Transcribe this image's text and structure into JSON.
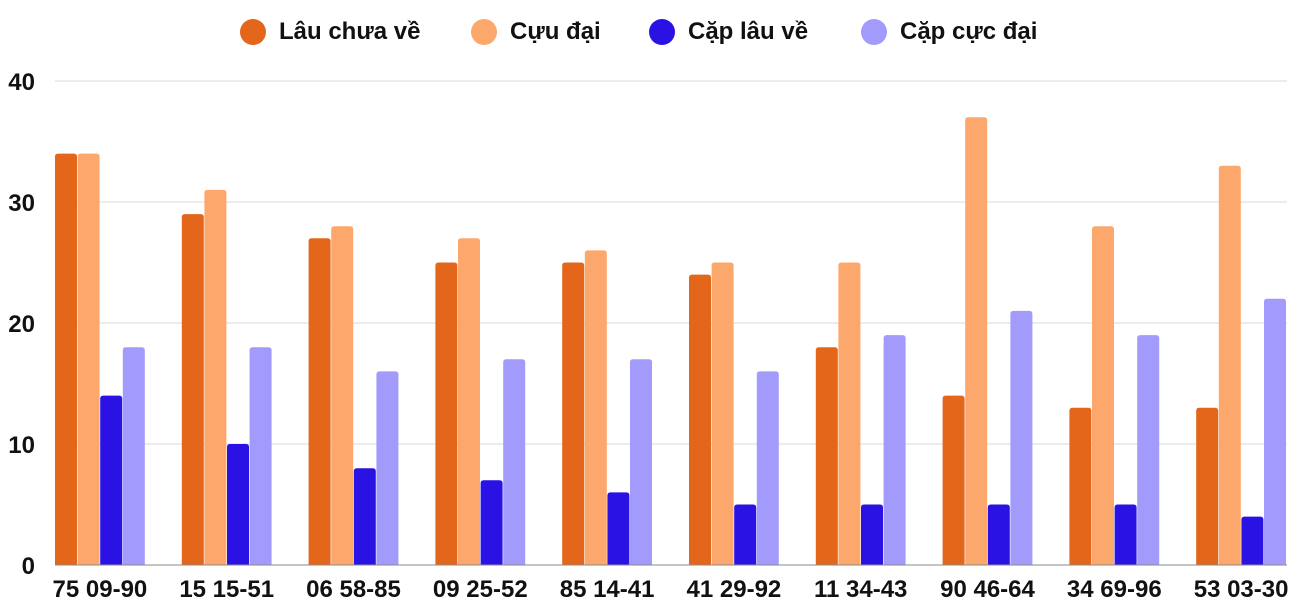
{
  "chart_data": {
    "type": "bar",
    "categories": [
      "75 09-90",
      "15 15-51",
      "06 58-85",
      "09 25-52",
      "85 14-41",
      "41 29-92",
      "11 34-43",
      "90 46-64",
      "34 69-96",
      "53 03-30"
    ],
    "series": [
      {
        "name": "Lâu chưa về",
        "color": "#e3661a",
        "values": [
          34,
          29,
          27,
          25,
          25,
          24,
          18,
          14,
          13,
          13
        ]
      },
      {
        "name": "Cựu đại",
        "color": "#fca86d",
        "values": [
          34,
          31,
          28,
          27,
          26,
          25,
          25,
          37,
          28,
          33
        ]
      },
      {
        "name": "Cặp lâu về",
        "color": "#2a12e4",
        "values": [
          14,
          10,
          8,
          7,
          6,
          5,
          5,
          5,
          5,
          4
        ]
      },
      {
        "name": "Cặp cực đại",
        "color": "#a29bfc",
        "values": [
          18,
          18,
          16,
          17,
          17,
          16,
          19,
          21,
          19,
          22
        ]
      }
    ],
    "ylim": [
      0,
      40
    ],
    "yticks": [
      "0",
      "10",
      "20",
      "30",
      "40"
    ],
    "grid": true,
    "legend_position": "top-center",
    "title": "",
    "xlabel": "",
    "ylabel": ""
  }
}
